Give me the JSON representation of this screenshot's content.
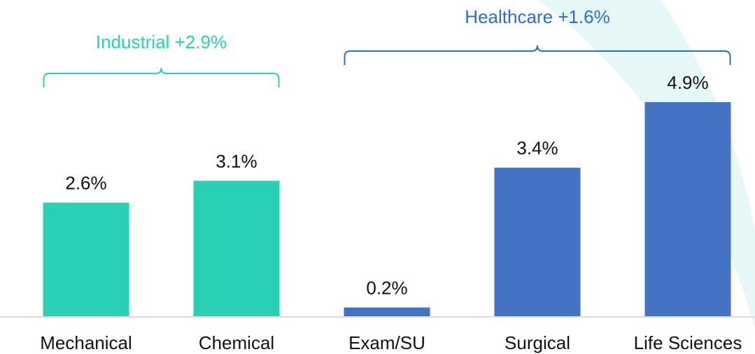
{
  "chart_data": {
    "type": "bar",
    "categories": [
      "Mechanical",
      "Chemical",
      "Exam/SU",
      "Surgical",
      "Life Sciences"
    ],
    "values": [
      2.6,
      3.1,
      0.2,
      3.4,
      4.9
    ],
    "value_labels": [
      "2.6%",
      "3.1%",
      "0.2%",
      "3.4%",
      "4.9%"
    ],
    "colors": [
      "#2ad0b5",
      "#2ad0b5",
      "#4472c4",
      "#4472c4",
      "#4472c4"
    ],
    "annotations": [
      {
        "text": "Industrial +2.9%",
        "categories": [
          "Mechanical",
          "Chemical"
        ],
        "color": "#2ad0b5"
      },
      {
        "text": "Healthcare +1.6%",
        "categories": [
          "Exam/SU",
          "Surgical",
          "Life Sciences"
        ],
        "color": "#2f6fba"
      }
    ]
  }
}
